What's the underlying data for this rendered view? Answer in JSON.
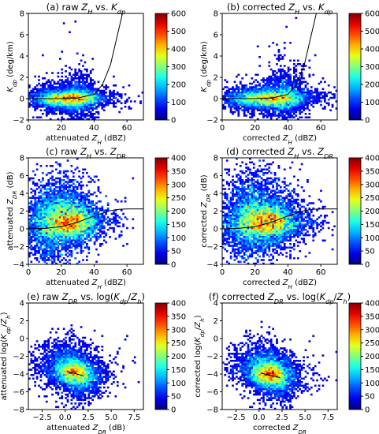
{
  "chart_data": [
    {
      "type": "heatmap",
      "title": "(a) raw Z_H vs. K_dp",
      "title_parts": [
        "(a) raw ",
        "Z",
        "H",
        " vs. ",
        "K",
        "dp"
      ],
      "xlabel_parts": [
        "attenuated ",
        "Z",
        "H",
        " (dBZ)"
      ],
      "ylabel_parts": [
        "K",
        "dp",
        " (deg/km)"
      ],
      "xlim": [
        0,
        70
      ],
      "ylim": [
        -2,
        8
      ],
      "xticks": [
        0,
        20,
        40,
        60
      ],
      "yticks": [
        -2,
        0,
        2,
        4,
        6,
        8
      ],
      "colorbar": {
        "ticks": [
          0,
          100,
          200,
          300,
          400,
          500,
          600
        ],
        "range": [
          0,
          600
        ]
      },
      "density_blobs": [
        {
          "x": 26,
          "y": 0.0,
          "sx": 9,
          "sy": 0.35,
          "n": 900
        },
        {
          "x": 30,
          "y": 0.2,
          "sx": 5,
          "sy": 1.0,
          "n": 250
        },
        {
          "x": 14,
          "y": 0.0,
          "sx": 6,
          "sy": 0.5,
          "n": 200
        }
      ],
      "peak": {
        "x": 26,
        "y": 0.05
      },
      "fit_curve": {
        "type": "exp",
        "x": [
          0,
          10,
          20,
          30,
          40,
          45,
          50,
          55,
          58
        ],
        "y": [
          0.0,
          0.0,
          0.01,
          0.05,
          0.4,
          1.3,
          3.2,
          6.5,
          8.5
        ]
      }
    },
    {
      "type": "heatmap",
      "title": "(b) corrected Z_H vs. K_dp",
      "title_parts": [
        "(b) corrected ",
        "Z",
        "H",
        " vs. ",
        "K",
        "dp"
      ],
      "xlabel_parts": [
        "corrected ",
        "Z",
        "H",
        " (dBZ)"
      ],
      "ylabel_parts": [
        "K",
        "dp",
        " (deg/km)"
      ],
      "xlim": [
        0,
        70
      ],
      "ylim": [
        -2,
        8
      ],
      "xticks": [
        0,
        20,
        40,
        60
      ],
      "yticks": [
        -2,
        0,
        2,
        4,
        6,
        8
      ],
      "colorbar": {
        "ticks": [
          0,
          100,
          200,
          300,
          400,
          500,
          600
        ],
        "range": [
          0,
          600
        ]
      },
      "density_blobs": [
        {
          "x": 30,
          "y": 0.0,
          "sx": 10,
          "sy": 0.4,
          "n": 900
        },
        {
          "x": 38,
          "y": 0.3,
          "sx": 6,
          "sy": 1.2,
          "n": 280
        },
        {
          "x": 14,
          "y": 0.0,
          "sx": 6,
          "sy": 0.5,
          "n": 150
        }
      ],
      "peak": {
        "x": 30,
        "y": 0.05
      },
      "fit_curve": {
        "type": "exp",
        "x": [
          0,
          10,
          20,
          30,
          40,
          45,
          50,
          55,
          58
        ],
        "y": [
          0.0,
          0.0,
          0.01,
          0.05,
          0.4,
          1.3,
          3.2,
          6.5,
          8.5
        ]
      }
    },
    {
      "type": "heatmap",
      "title": "(c) raw Z_H vs. Z_DR",
      "title_parts": [
        "(c) raw ",
        "Z",
        "H",
        " vs. ",
        "Z",
        "DR"
      ],
      "xlabel_parts": [
        "attenuated ",
        "Z",
        "H",
        " (dBZ)"
      ],
      "ylabel_parts": [
        "attenuated ",
        "Z",
        "DR",
        " (dB)"
      ],
      "xlim": [
        0,
        70
      ],
      "ylim": [
        -4,
        8
      ],
      "xticks": [
        0,
        20,
        40,
        60
      ],
      "yticks": [
        -4,
        -2,
        0,
        2,
        4,
        6,
        8
      ],
      "colorbar": {
        "ticks": [
          0,
          50,
          100,
          150,
          200,
          250,
          300,
          350,
          400
        ],
        "range": [
          0,
          400
        ]
      },
      "density_blobs": [
        {
          "x": 26,
          "y": 0.8,
          "sx": 8,
          "sy": 1.0,
          "n": 900
        },
        {
          "x": 12,
          "y": 0.3,
          "sx": 6,
          "sy": 2.0,
          "n": 400
        },
        {
          "x": 20,
          "y": 2.5,
          "sx": 8,
          "sy": 1.8,
          "n": 200
        }
      ],
      "peak": {
        "x": 26,
        "y": 0.8
      },
      "fit_curve": {
        "type": "sigmoid",
        "x": [
          0,
          10,
          20,
          30,
          40,
          50,
          55,
          60,
          70
        ],
        "y": [
          0.0,
          0.05,
          0.25,
          0.75,
          1.45,
          2.05,
          2.2,
          2.25,
          2.25
        ]
      }
    },
    {
      "type": "heatmap",
      "title": "(d) corrected Z_H vs. Z_DR",
      "title_parts": [
        "(d) corrected ",
        "Z",
        "H",
        " vs. ",
        "Z",
        "DR"
      ],
      "xlabel_parts": [
        "corrected ",
        "Z",
        "H",
        " (dBZ)"
      ],
      "ylabel_parts": [
        "corrected ",
        "Z",
        "DR",
        " (dB)"
      ],
      "xlim": [
        0,
        70
      ],
      "ylim": [
        -4,
        8
      ],
      "xticks": [
        0,
        20,
        40,
        60
      ],
      "yticks": [
        -4,
        -2,
        0,
        2,
        4,
        6,
        8
      ],
      "colorbar": {
        "ticks": [
          0,
          50,
          100,
          150,
          200,
          250,
          300,
          350,
          400
        ],
        "range": [
          0,
          400
        ]
      },
      "density_blobs": [
        {
          "x": 28,
          "y": 0.7,
          "sx": 9,
          "sy": 1.0,
          "n": 1000
        },
        {
          "x": 15,
          "y": 0.5,
          "sx": 7,
          "sy": 2.0,
          "n": 400
        },
        {
          "x": 22,
          "y": 2.8,
          "sx": 10,
          "sy": 1.9,
          "n": 250
        }
      ],
      "peak": {
        "x": 30,
        "y": 0.8
      },
      "fit_curve": {
        "type": "sigmoid",
        "x": [
          0,
          10,
          20,
          30,
          40,
          50,
          55,
          60,
          70
        ],
        "y": [
          0.0,
          0.05,
          0.25,
          0.75,
          1.45,
          2.05,
          2.2,
          2.25,
          2.25
        ]
      }
    },
    {
      "type": "heatmap",
      "title": "(e) raw Z_DR vs. log(K_dp/Z_h)",
      "title_parts": [
        "(e) raw ",
        "Z",
        "DR",
        " vs. log(",
        "K",
        "dp",
        "/",
        "Z",
        "h",
        ")"
      ],
      "xlabel_parts": [
        "attenuated ",
        "Z",
        "DR",
        " (dB)"
      ],
      "ylabel_parts": [
        "attenuated log(",
        "K",
        "dp",
        "/",
        "Z",
        "h",
        ")"
      ],
      "xlim": [
        -4,
        8.5
      ],
      "ylim": [
        -8,
        4
      ],
      "xticks": [
        -2.5,
        0.0,
        2.5,
        5.0,
        7.5
      ],
      "xtick_labels": [
        "−2.5",
        "0.0",
        "2.5",
        "5.0",
        "7.5"
      ],
      "yticks": [
        -8,
        -6,
        -4,
        -2,
        0,
        2,
        4
      ],
      "colorbar": {
        "ticks": [
          0,
          50,
          100,
          150,
          200,
          250,
          300,
          350,
          400
        ],
        "range": [
          0,
          400
        ]
      },
      "density_blobs": [
        {
          "x": 0.9,
          "y": -3.8,
          "sx": 1.0,
          "sy": 0.7,
          "n": 800
        },
        {
          "x": 0.0,
          "y": -2.5,
          "sx": 1.4,
          "sy": 1.0,
          "n": 300
        },
        {
          "x": 2.0,
          "y": -5.0,
          "sx": 1.0,
          "sy": 0.9,
          "n": 200
        }
      ],
      "peak": {
        "x": 1.0,
        "y": -3.8
      },
      "fit_curve": {
        "type": "line",
        "x": [
          0.2,
          2.0
        ],
        "y": [
          -3.7,
          -4.2
        ]
      }
    },
    {
      "type": "heatmap",
      "title": "(f) corrected Z_DR vs. log(K_dp/Z_h)",
      "title_parts": [
        "(f) corrected ",
        "Z",
        "DR",
        " vs. log(",
        "K",
        "dp",
        "/",
        "Z",
        "h",
        ")"
      ],
      "xlabel_parts": [
        "corrected ",
        "Z",
        "DR",
        ""
      ],
      "ylabel_parts": [
        "corrected log(",
        "K",
        "dp",
        "/",
        "Z",
        "h",
        ")"
      ],
      "xlim": [
        -4,
        8.5
      ],
      "ylim": [
        -8,
        4
      ],
      "xticks": [
        -2.5,
        0.0,
        2.5,
        5.0,
        7.5
      ],
      "xtick_labels": [
        "−2.5",
        "0.0",
        "2.5",
        "5.0",
        "7.5"
      ],
      "yticks": [
        -8,
        -6,
        -4,
        -2,
        0,
        2,
        4
      ],
      "colorbar": {
        "ticks": [
          0,
          50,
          100,
          150,
          200,
          250,
          300,
          350,
          400
        ],
        "range": [
          0,
          400
        ]
      },
      "density_blobs": [
        {
          "x": 1.1,
          "y": -4.0,
          "sx": 1.0,
          "sy": 0.7,
          "n": 800
        },
        {
          "x": 0.2,
          "y": -2.8,
          "sx": 1.4,
          "sy": 1.0,
          "n": 300
        },
        {
          "x": 2.4,
          "y": -5.0,
          "sx": 1.1,
          "sy": 0.9,
          "n": 200
        }
      ],
      "peak": {
        "x": 1.2,
        "y": -4.0
      },
      "fit_curve": {
        "type": "line",
        "x": [
          0.2,
          2.3
        ],
        "y": [
          -3.9,
          -4.4
        ]
      }
    }
  ]
}
